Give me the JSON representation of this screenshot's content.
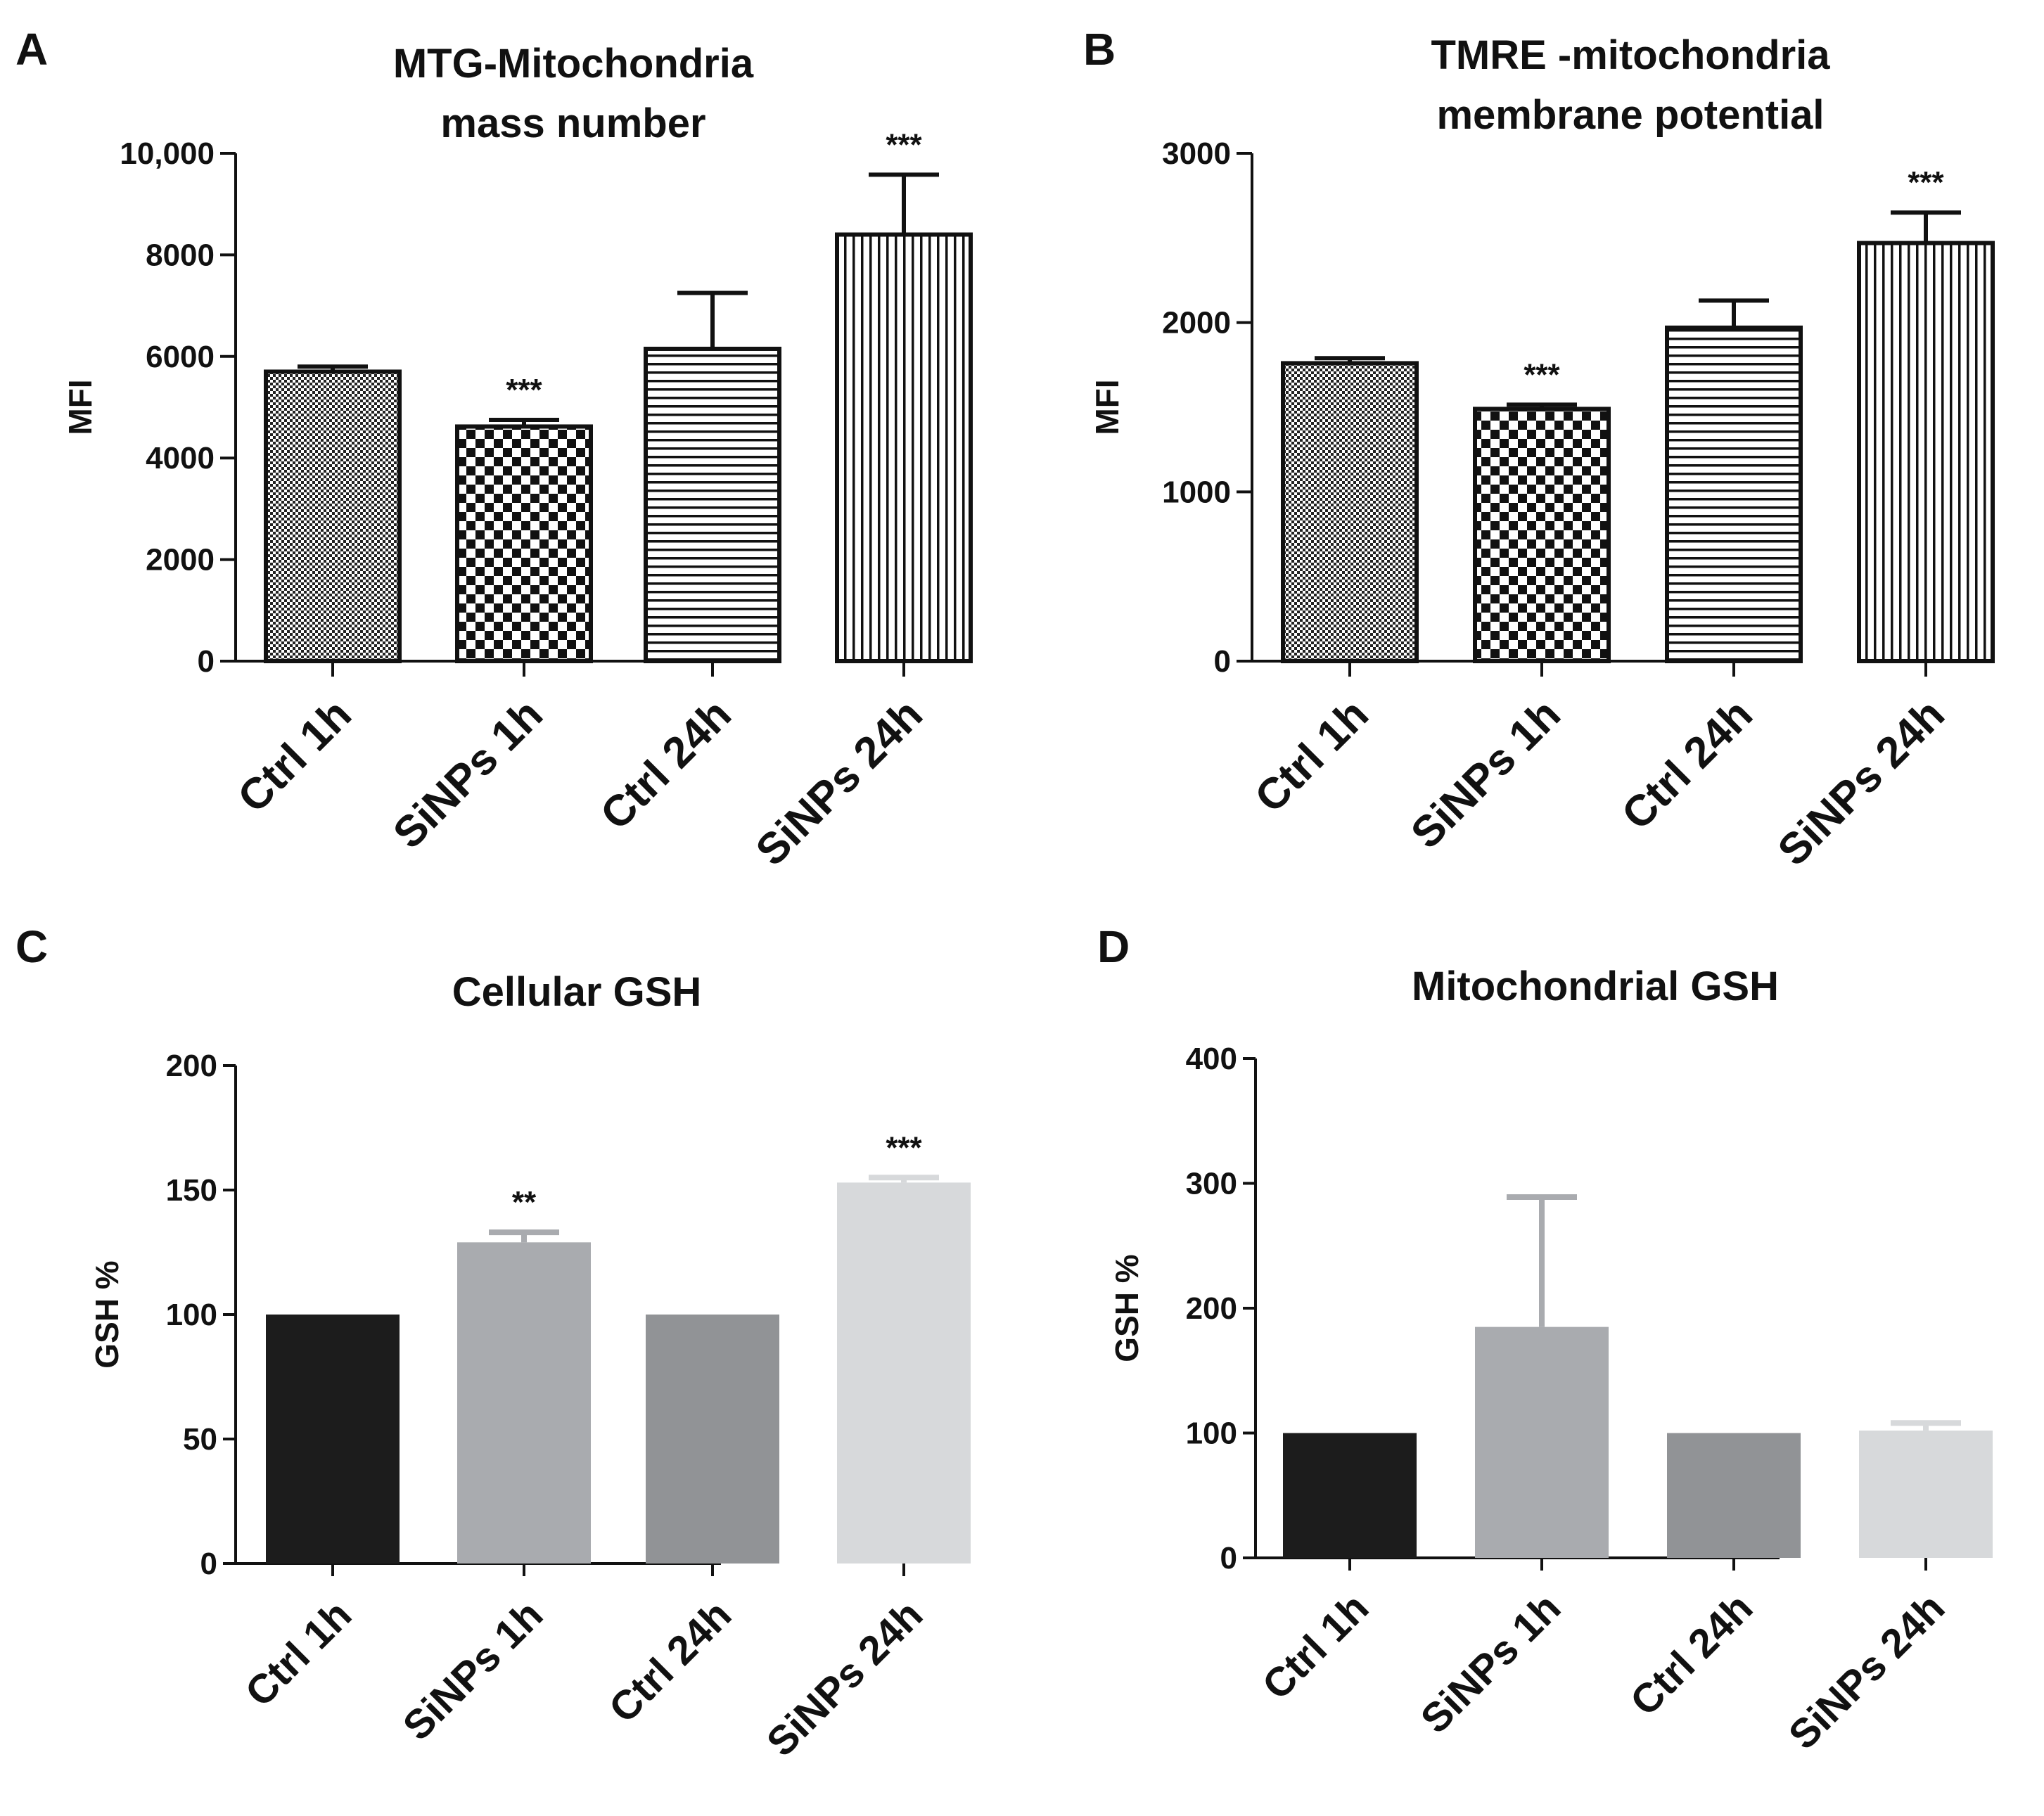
{
  "chart_data": [
    {
      "panel": "A",
      "type": "bar",
      "title": [
        "MTG-Mitochondria",
        "mass number"
      ],
      "xlabel": "",
      "ylabel": "MFI",
      "ylim": [
        0,
        10000
      ],
      "yticks": [
        0,
        2000,
        4000,
        6000,
        8000,
        10000
      ],
      "ytick_labels": [
        "0",
        "2000",
        "4000",
        "6000",
        "8000",
        "10,000"
      ],
      "categories": [
        "Ctrl 1h",
        "SiNPs 1h",
        "Ctrl 24h",
        "SiNPs 24h"
      ],
      "values": [
        5700,
        4620,
        6150,
        8400
      ],
      "errors": [
        100,
        130,
        1100,
        1180
      ],
      "significance": [
        "",
        "***",
        "",
        "***"
      ],
      "fills": [
        "dots",
        "checker",
        "hstripes",
        "vstripes"
      ],
      "colors": [
        "#111111",
        "#111111",
        "#111111",
        "#111111"
      ]
    },
    {
      "panel": "B",
      "type": "bar",
      "title": [
        "TMRE -mitochondria",
        "membrane potential"
      ],
      "xlabel": "",
      "ylabel": "MFI",
      "ylim": [
        0,
        3000
      ],
      "yticks": [
        0,
        1000,
        2000,
        3000
      ],
      "ytick_labels": [
        "0",
        "1000",
        "2000",
        "3000"
      ],
      "categories": [
        "Ctrl 1h",
        "SiNPs 1h",
        "Ctrl 24h",
        "SiNPs 24h"
      ],
      "values": [
        1760,
        1490,
        1970,
        2470
      ],
      "errors": [
        30,
        25,
        160,
        180
      ],
      "significance": [
        "",
        "***",
        "",
        "***"
      ],
      "fills": [
        "dots",
        "checker",
        "hstripes",
        "vstripes"
      ],
      "colors": [
        "#111111",
        "#111111",
        "#111111",
        "#111111"
      ]
    },
    {
      "panel": "C",
      "type": "bar",
      "title": [
        "Cellular GSH"
      ],
      "xlabel": "",
      "ylabel": "GSH %",
      "ylim": [
        0,
        200
      ],
      "yticks": [
        0,
        50,
        100,
        150,
        200
      ],
      "ytick_labels": [
        "0",
        "50",
        "100",
        "150",
        "200"
      ],
      "categories": [
        "Ctrl 1h",
        "SiNPs 1h",
        "Ctrl 24h",
        "SiNPs 24h"
      ],
      "values": [
        100,
        129,
        100,
        153
      ],
      "errors": [
        0,
        4,
        0,
        2
      ],
      "significance": [
        "",
        "**",
        "",
        "***"
      ],
      "fills": [
        "solid",
        "solid",
        "solid",
        "solid"
      ],
      "colors": [
        "#1c1c1c",
        "#a9abaf",
        "#919396",
        "#d7d9db"
      ]
    },
    {
      "panel": "D",
      "type": "bar",
      "title": [
        "Mitochondrial GSH"
      ],
      "xlabel": "",
      "ylabel": "GSH %",
      "ylim": [
        0,
        400
      ],
      "yticks": [
        0,
        100,
        200,
        300,
        400
      ],
      "ytick_labels": [
        "0",
        "100",
        "200",
        "300",
        "400"
      ],
      "categories": [
        "Ctrl 1h",
        "SiNPs 1h",
        "Ctrl 24h",
        "SiNPs 24h"
      ],
      "values": [
        100,
        185,
        100,
        102
      ],
      "errors": [
        0,
        104,
        0,
        6
      ],
      "significance": [
        "",
        "",
        "",
        ""
      ],
      "fills": [
        "solid",
        "solid",
        "solid",
        "solid"
      ],
      "colors": [
        "#1c1c1c",
        "#a9abaf",
        "#919396",
        "#d7d9db"
      ]
    }
  ]
}
